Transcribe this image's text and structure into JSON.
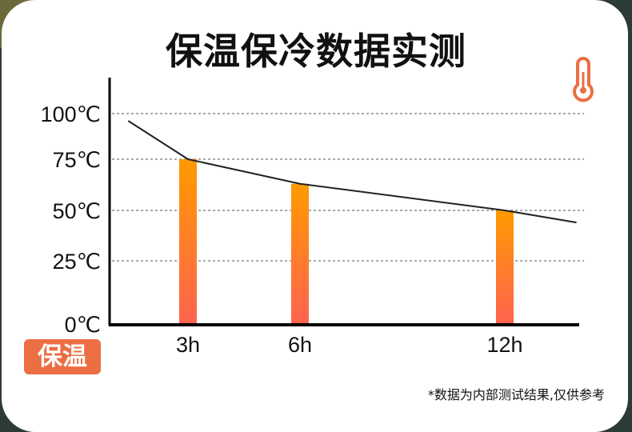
{
  "title": "保温保冷数据实测",
  "badge": "保温",
  "note": "*数据为内部测试结果,仅供参考",
  "icon": "thermometer-icon",
  "colors": {
    "bar_top": "#ff9a00",
    "bar_bottom": "#ff6350",
    "line": "#222222",
    "badge": "#ec6e43",
    "icon": "#ec6e43"
  },
  "chart_data": {
    "type": "bar",
    "categories": [
      "3h",
      "6h",
      "12h"
    ],
    "x_hours": [
      3,
      6,
      12
    ],
    "values": [
      75,
      63,
      50
    ],
    "line": {
      "x_hours": [
        1.4,
        3,
        6,
        12,
        14.1
      ],
      "values": [
        96,
        75,
        63,
        50,
        44
      ]
    },
    "ylim": [
      0,
      100
    ],
    "yticks": [
      0,
      25,
      50,
      75,
      100
    ],
    "ytick_labels": [
      "0℃",
      "25℃",
      "50℃",
      "75℃",
      "100℃"
    ],
    "grid": "dashed horizontal",
    "xlabel": "",
    "ylabel": ""
  }
}
